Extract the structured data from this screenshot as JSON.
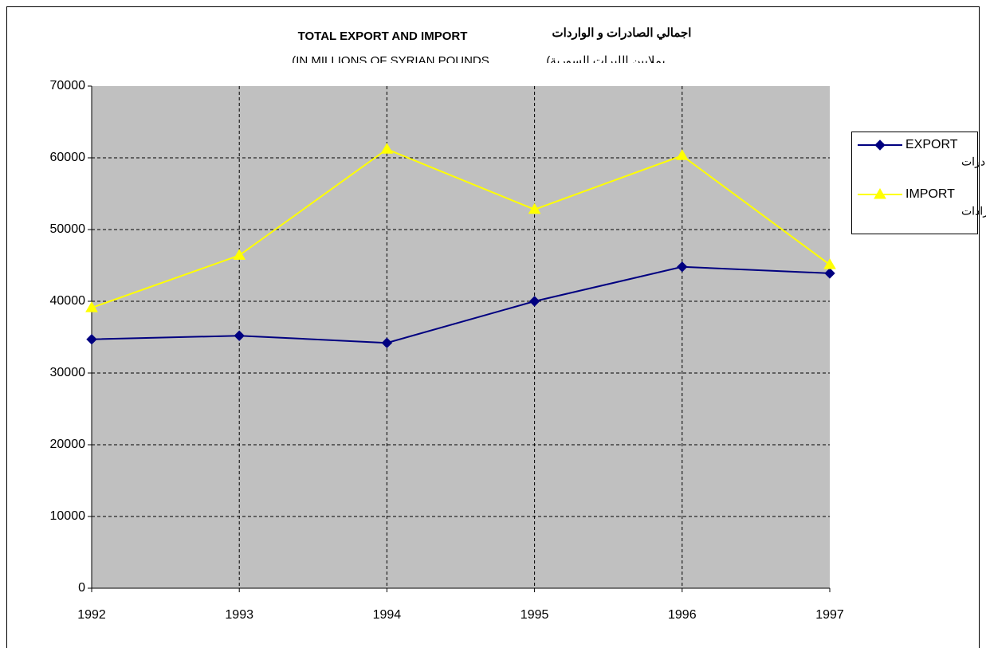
{
  "chart_data": {
    "type": "line",
    "title": "TOTAL EXPORT AND IMPORT",
    "title_ar": "اجمالي الصادرات و الواردات",
    "subtitle": "(IN MILLIONS OF SYRIAN POUNDS",
    "subtitle_ar": "بملايين الليرات السورية)",
    "x": [
      1992,
      1993,
      1994,
      1995,
      1996,
      1997
    ],
    "xlim": [
      1992,
      1997
    ],
    "xticks": [
      1992,
      1993,
      1994,
      1995,
      1996,
      1997
    ],
    "ylim": [
      0,
      70000
    ],
    "yticks": [
      0,
      10000,
      20000,
      30000,
      40000,
      50000,
      60000,
      70000
    ],
    "grid": true,
    "legend": "right",
    "series": [
      {
        "name": "EXPORT",
        "name_ar": "الصادرات",
        "color": "#000080",
        "marker": "diamond",
        "values": [
          34700,
          35200,
          34200,
          40000,
          44800,
          43900
        ]
      },
      {
        "name": "IMPORT",
        "name_ar": "الاستيرادات",
        "color": "#ffff00",
        "marker": "triangle",
        "values": [
          39100,
          46400,
          61200,
          52800,
          60300,
          45100
        ]
      }
    ]
  }
}
